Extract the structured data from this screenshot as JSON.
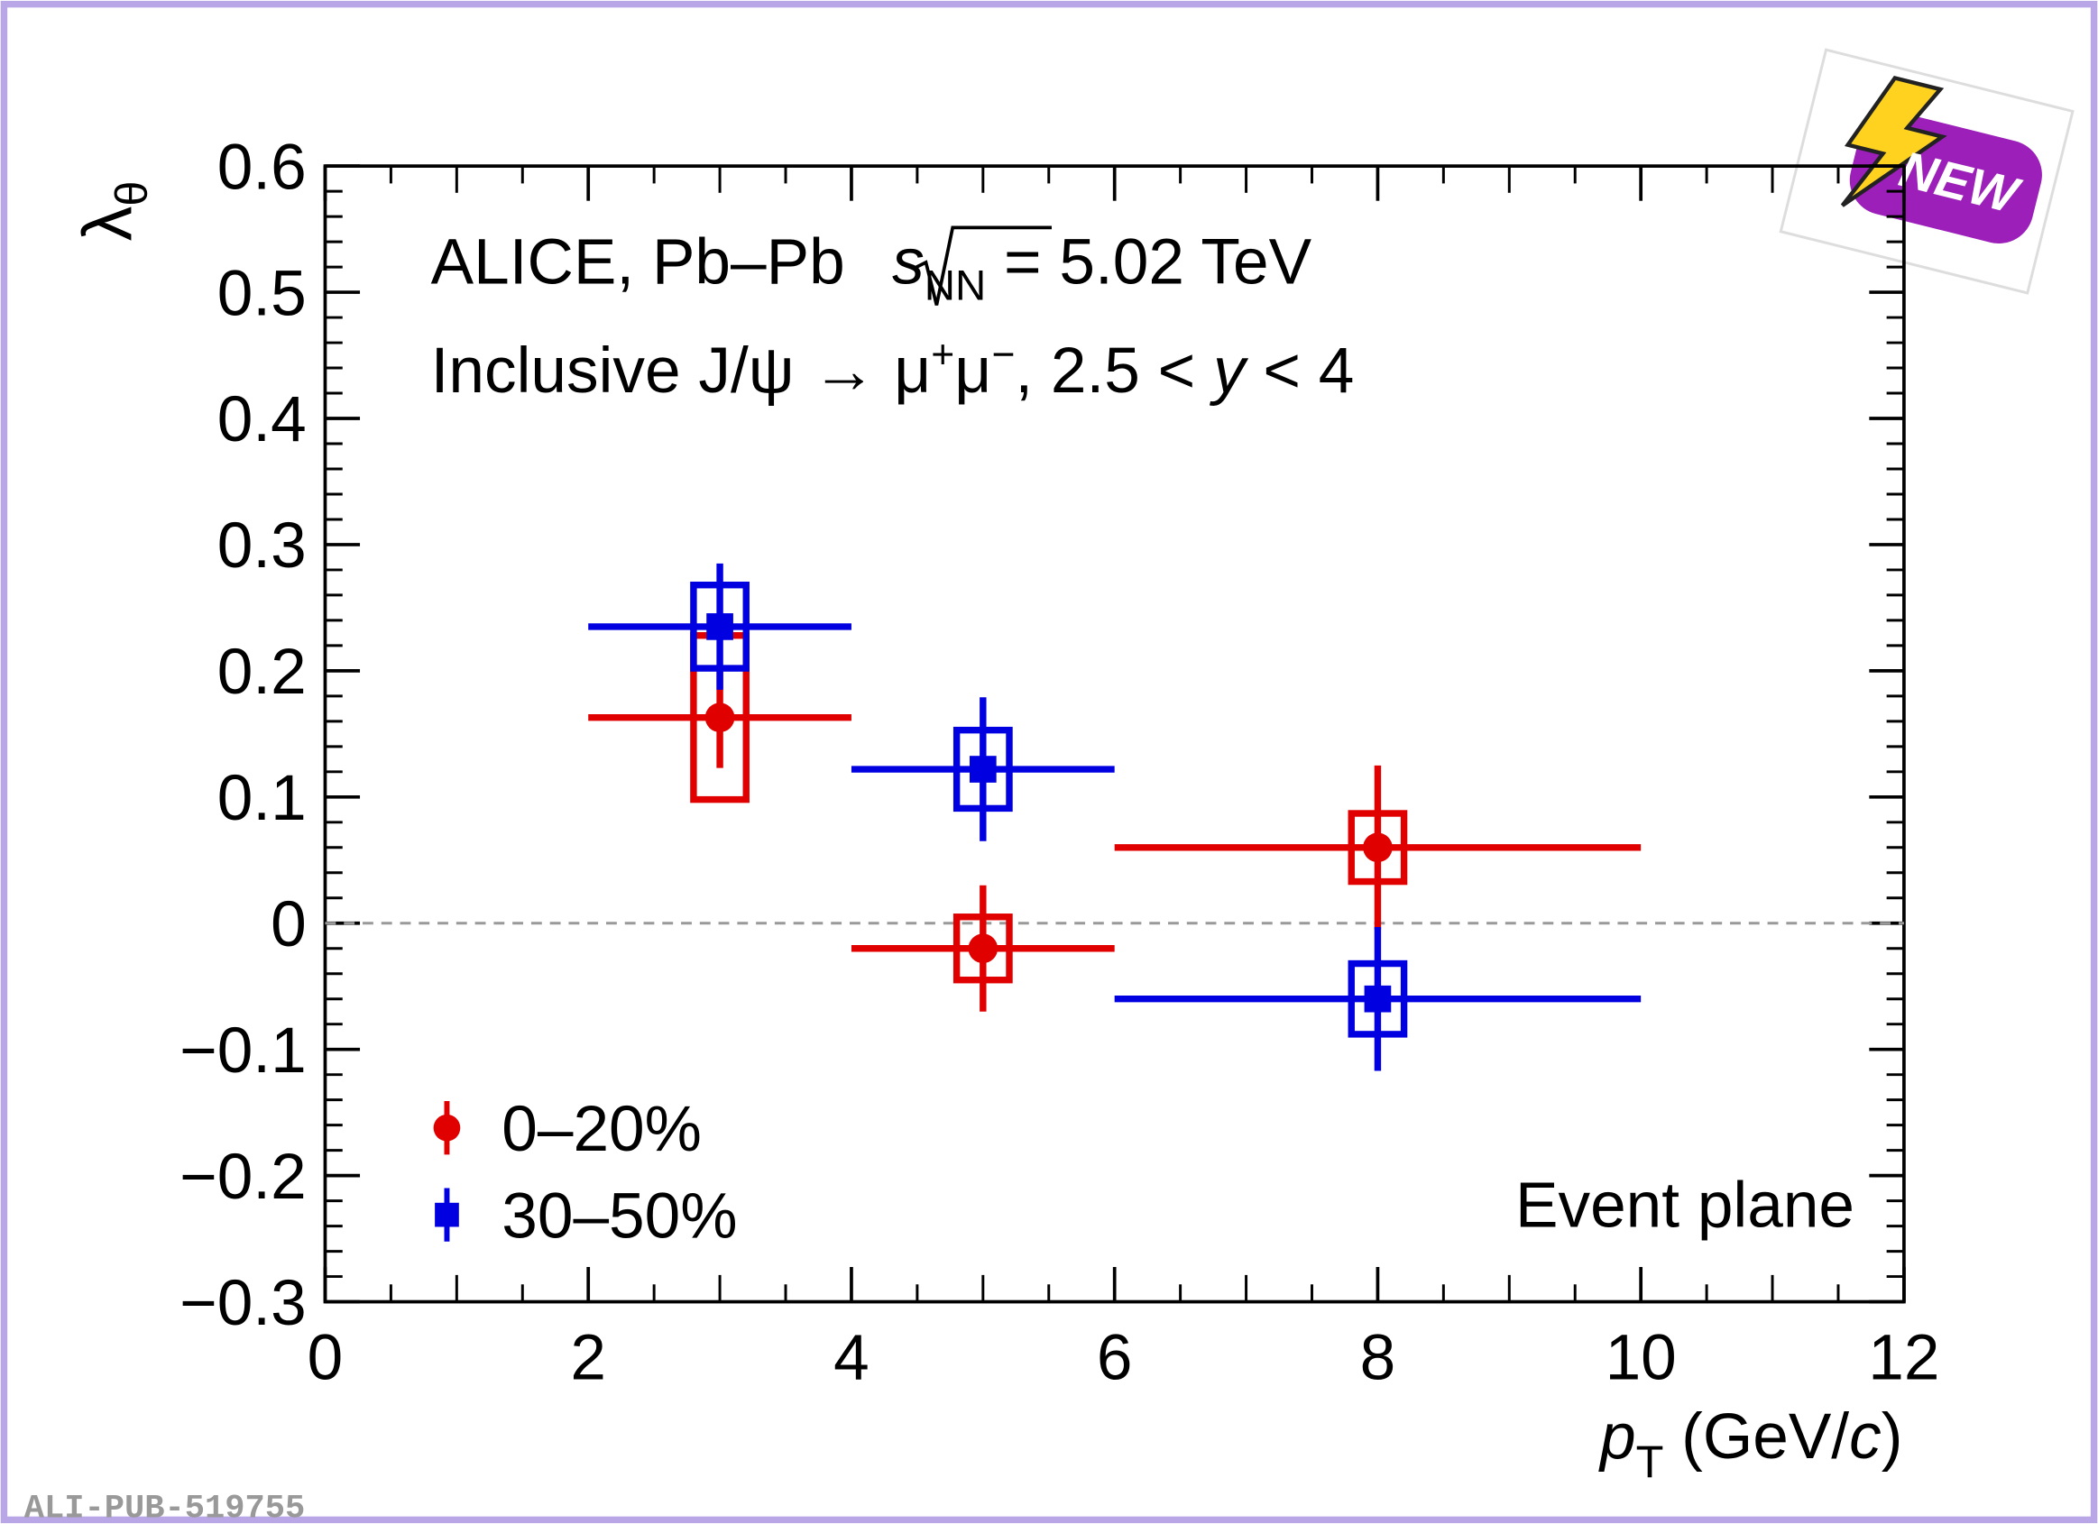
{
  "chart_data": {
    "type": "errorbar",
    "x": [
      3,
      5,
      8
    ],
    "xerr": [
      1,
      1,
      2
    ],
    "series": [
      {
        "name": "0–20%",
        "color": "#e00000",
        "marker": "circle",
        "values": [
          0.163,
          -0.02,
          0.06
        ],
        "stat_err": [
          0.04,
          0.05,
          0.065
        ],
        "syst_err": [
          0.065,
          0.025,
          0.027
        ]
      },
      {
        "name": "30–50%",
        "color": "#0000e0",
        "marker": "square",
        "values": [
          0.235,
          0.122,
          -0.06
        ],
        "stat_err": [
          0.05,
          0.057,
          0.057
        ],
        "syst_err": [
          0.033,
          0.031,
          0.028
        ]
      }
    ],
    "xlim": [
      0,
      12
    ],
    "xticks": [
      0,
      2,
      4,
      6,
      8,
      10,
      12
    ],
    "ylim": [
      -0.3,
      0.6
    ],
    "yticks": [
      {
        "value": -0.3,
        "label": "−0.3"
      },
      {
        "value": -0.2,
        "label": "−0.2"
      },
      {
        "value": -0.1,
        "label": "−0.1"
      },
      0,
      0.1,
      0.2,
      0.3,
      0.4,
      0.5,
      0.6
    ],
    "hline": 0,
    "ylabel": [
      "λ",
      "θ"
    ],
    "xlabel": [
      "p",
      "T",
      " (GeV/",
      "c",
      ")"
    ],
    "annotations": [
      [
        "ALICE, Pb–Pb ",
        "s",
        "NN",
        " = 5.02 TeV"
      ],
      [
        "Inclusive J/ψ → μ",
        "+",
        "μ",
        "−",
        ", 2.5 < ",
        "y",
        " < 4"
      ]
    ],
    "note": "Event plane",
    "footer": "ALI-PUB-519755",
    "badge": "NEW",
    "legend": "lower left"
  }
}
